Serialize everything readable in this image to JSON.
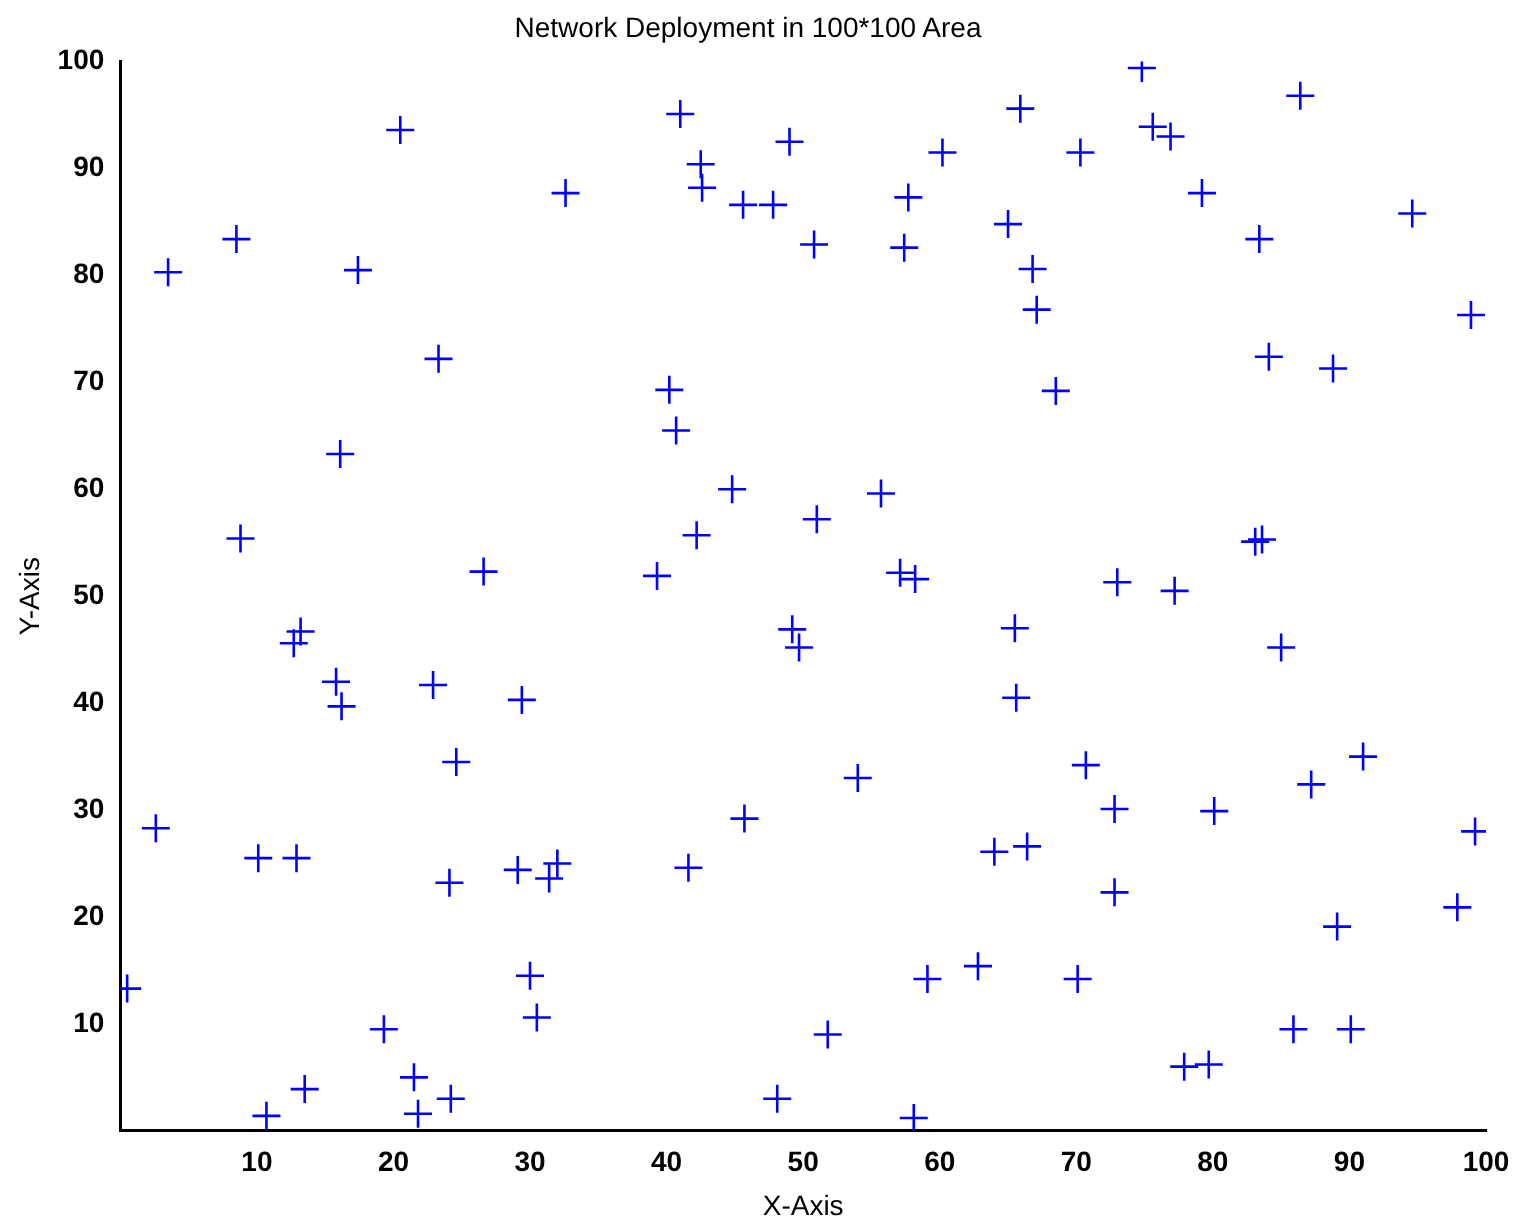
{
  "chart_data": {
    "type": "scatter",
    "title": "Network Deployment in 100*100 Area",
    "xlabel": "X-Axis",
    "ylabel": "Y-Axis",
    "marker": "cross",
    "grid": false,
    "legend": false,
    "xlim": [
      0,
      100
    ],
    "xticks": [
      10,
      20,
      30,
      40,
      50,
      60,
      70,
      80,
      90,
      100
    ],
    "ylim": [
      0,
      100
    ],
    "yticks": [
      10,
      20,
      30,
      40,
      50,
      60,
      70,
      80,
      90,
      100
    ],
    "series": [
      {
        "color": "#0000ff",
        "x": [
          3.5,
          2.6,
          0.5,
          8.5,
          8.8,
          10.1,
          10.7,
          12.7,
          13.2,
          12.9,
          13.5,
          15.8,
          16.2,
          16.1,
          17.4,
          20.5,
          19.3,
          21.5,
          21.8,
          22.9,
          23.3,
          24.1,
          24.6,
          24.2,
          26.6,
          29.1,
          29.4,
          30.0,
          30.5,
          31.4,
          32.0,
          32.6,
          39.3,
          40.2,
          40.7,
          41.0,
          41.6,
          42.2,
          42.5,
          42.6,
          44.8,
          45.7,
          45.6,
          47.8,
          48.1,
          49.0,
          49.2,
          49.7,
          50.8,
          51.0,
          51.8,
          54.0,
          55.7,
          57.1,
          57.4,
          57.7,
          58.2,
          58.1,
          59.1,
          60.2,
          62.8,
          64.0,
          65.0,
          65.5,
          65.6,
          65.9,
          66.4,
          66.8,
          67.1,
          68.5,
          70.1,
          70.3,
          70.7,
          72.8,
          72.8,
          73.0,
          74.8,
          75.6,
          77.2,
          76.9,
          77.9,
          79.2,
          79.7,
          80.1,
          83.1,
          83.6,
          83.4,
          84.1,
          85.0,
          85.9,
          86.4,
          87.2,
          88.8,
          89.1,
          90.1,
          91.0,
          94.6,
          97.9,
          98.9,
          99.2
        ],
        "values": [
          80.3,
          28.3,
          13.3,
          83.4,
          55.4,
          25.5,
          1.4,
          45.6,
          46.7,
          25.5,
          3.9,
          42.0,
          39.7,
          63.3,
          80.5,
          93.6,
          9.5,
          5.0,
          1.6,
          41.7,
          72.2,
          23.2,
          34.5,
          3.0,
          52.3,
          24.4,
          40.3,
          14.5,
          10.6,
          23.6,
          25.0,
          87.7,
          51.9,
          69.3,
          65.5,
          95.1,
          24.6,
          55.7,
          90.4,
          88.2,
          60.0,
          29.2,
          86.6,
          86.6,
          3.0,
          92.5,
          46.9,
          45.2,
          82.9,
          57.2,
          9.0,
          33.0,
          59.6,
          52.2,
          82.6,
          87.3,
          51.6,
          1.2,
          14.2,
          91.5,
          15.4,
          26.1,
          84.8,
          47.0,
          40.5,
          95.6,
          26.6,
          80.6,
          76.8,
          69.2,
          14.2,
          91.5,
          34.2,
          30.1,
          22.3,
          51.3,
          99.4,
          93.9,
          50.5,
          93.0,
          6.0,
          87.7,
          6.2,
          29.9,
          55.1,
          55.3,
          83.4,
          72.4,
          45.2,
          9.5,
          96.8,
          32.4,
          71.3,
          19.1,
          9.5,
          35.0,
          85.8,
          20.9,
          76.3,
          28.0
        ]
      }
    ]
  }
}
